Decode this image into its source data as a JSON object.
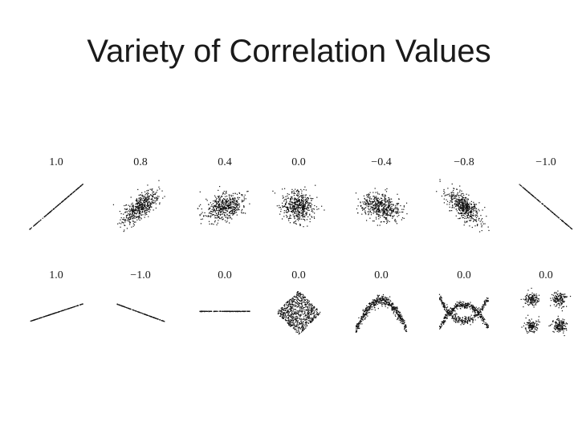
{
  "slide": {
    "title": "Variety of Correlation Values"
  },
  "colors": {
    "dots": "#111111",
    "text": "#1a1a1a",
    "background": "#ffffff"
  },
  "rows": [
    {
      "panels": [
        {
          "label": "1.0",
          "pattern": "line-positive-steep"
        },
        {
          "label": "0.8",
          "pattern": "cloud-positive-strong"
        },
        {
          "label": "0.4",
          "pattern": "cloud-positive-weak"
        },
        {
          "label": "0.0",
          "pattern": "cloud-round"
        },
        {
          "label": "−0.4",
          "pattern": "cloud-negative-weak"
        },
        {
          "label": "−0.8",
          "pattern": "cloud-negative-strong"
        },
        {
          "label": "−1.0",
          "pattern": "line-negative-steep"
        }
      ]
    },
    {
      "panels": [
        {
          "label": "1.0",
          "pattern": "line-positive-shallow"
        },
        {
          "label": "−1.0",
          "pattern": "line-negative-shallow"
        },
        {
          "label": "0.0",
          "pattern": "line-flat"
        },
        {
          "label": "0.0",
          "pattern": "diamond"
        },
        {
          "label": "0.0",
          "pattern": "parabola"
        },
        {
          "label": "0.0",
          "pattern": "x-shape"
        },
        {
          "label": "0.0",
          "pattern": "four-clusters"
        }
      ]
    }
  ]
}
